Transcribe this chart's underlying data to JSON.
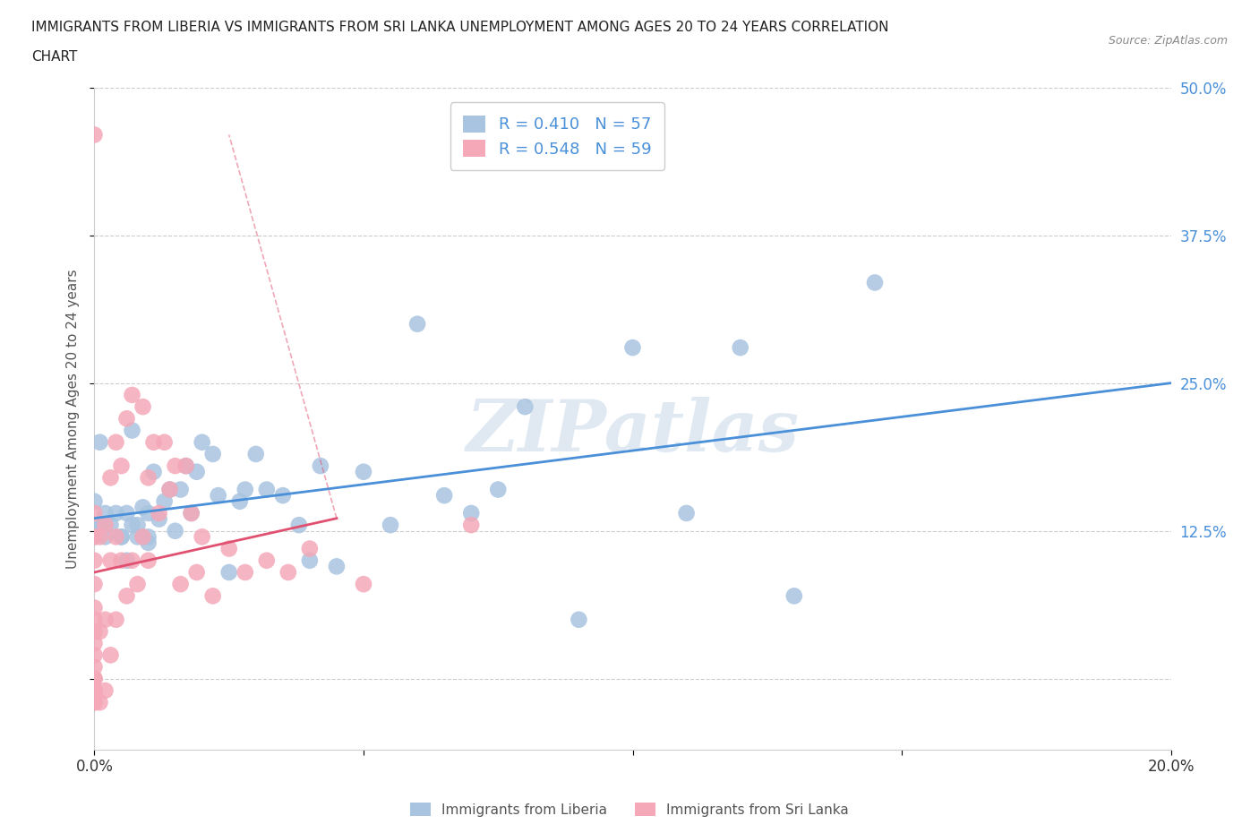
{
  "title_line1": "IMMIGRANTS FROM LIBERIA VS IMMIGRANTS FROM SRI LANKA UNEMPLOYMENT AMONG AGES 20 TO 24 YEARS CORRELATION",
  "title_line2": "CHART",
  "source": "Source: ZipAtlas.com",
  "ylabel": "Unemployment Among Ages 20 to 24 years",
  "xlim": [
    0.0,
    0.2
  ],
  "ylim": [
    -0.06,
    0.5
  ],
  "yticks": [
    0.0,
    0.125,
    0.25,
    0.375,
    0.5
  ],
  "ytick_labels": [
    "",
    "12.5%",
    "25.0%",
    "37.5%",
    "50.0%"
  ],
  "xticks": [
    0.0,
    0.05,
    0.1,
    0.15,
    0.2
  ],
  "xtick_labels": [
    "0.0%",
    "",
    "",
    "",
    "20.0%"
  ],
  "liberia_R": 0.41,
  "liberia_N": 57,
  "srilanka_R": 0.548,
  "srilanka_N": 59,
  "liberia_color": "#a8c4e0",
  "srilanka_color": "#f4a8b8",
  "liberia_line_color": "#4a90d9",
  "srilanka_line_color": "#e05070",
  "watermark": "ZIPatlas",
  "watermark_color": "#c8d8e8",
  "background_color": "#ffffff",
  "liberia_x": [
    0.0,
    0.0,
    0.0,
    0.001,
    0.001,
    0.002,
    0.002,
    0.003,
    0.004,
    0.005,
    0.005,
    0.006,
    0.006,
    0.007,
    0.007,
    0.008,
    0.008,
    0.009,
    0.009,
    0.01,
    0.01,
    0.01,
    0.011,
    0.012,
    0.013,
    0.014,
    0.015,
    0.016,
    0.017,
    0.018,
    0.019,
    0.02,
    0.022,
    0.023,
    0.025,
    0.027,
    0.028,
    0.03,
    0.032,
    0.035,
    0.038,
    0.04,
    0.042,
    0.045,
    0.05,
    0.055,
    0.06,
    0.065,
    0.07,
    0.075,
    0.08,
    0.09,
    0.1,
    0.11,
    0.12,
    0.13,
    0.145
  ],
  "liberia_y": [
    0.12,
    0.13,
    0.15,
    0.13,
    0.2,
    0.12,
    0.14,
    0.13,
    0.14,
    0.12,
    0.12,
    0.1,
    0.14,
    0.13,
    0.21,
    0.12,
    0.13,
    0.12,
    0.145,
    0.115,
    0.12,
    0.14,
    0.175,
    0.135,
    0.15,
    0.16,
    0.125,
    0.16,
    0.18,
    0.14,
    0.175,
    0.2,
    0.19,
    0.155,
    0.09,
    0.15,
    0.16,
    0.19,
    0.16,
    0.155,
    0.13,
    0.1,
    0.18,
    0.095,
    0.175,
    0.13,
    0.3,
    0.155,
    0.14,
    0.16,
    0.23,
    0.05,
    0.28,
    0.14,
    0.28,
    0.07,
    0.335
  ],
  "srilanka_x": [
    0.0,
    0.0,
    0.0,
    0.0,
    0.0,
    0.0,
    0.0,
    0.0,
    0.0,
    0.0,
    0.0,
    0.0,
    0.0,
    0.0,
    0.0,
    0.0,
    0.0,
    0.0,
    0.001,
    0.001,
    0.001,
    0.002,
    0.002,
    0.002,
    0.003,
    0.003,
    0.003,
    0.004,
    0.004,
    0.004,
    0.005,
    0.005,
    0.006,
    0.006,
    0.007,
    0.007,
    0.008,
    0.009,
    0.009,
    0.01,
    0.01,
    0.011,
    0.012,
    0.013,
    0.014,
    0.015,
    0.016,
    0.017,
    0.018,
    0.019,
    0.02,
    0.022,
    0.025,
    0.028,
    0.032,
    0.036,
    0.04,
    0.05,
    0.07
  ],
  "srilanka_y": [
    -0.01,
    -0.01,
    -0.02,
    -0.02,
    -0.01,
    0.0,
    0.0,
    0.01,
    0.02,
    0.03,
    0.04,
    0.05,
    0.06,
    0.08,
    0.1,
    0.12,
    0.14,
    0.46,
    -0.02,
    0.04,
    0.12,
    -0.01,
    0.05,
    0.13,
    0.02,
    0.1,
    0.17,
    0.05,
    0.12,
    0.2,
    0.1,
    0.18,
    0.07,
    0.22,
    0.1,
    0.24,
    0.08,
    0.12,
    0.23,
    0.1,
    0.17,
    0.2,
    0.14,
    0.2,
    0.16,
    0.18,
    0.08,
    0.18,
    0.14,
    0.09,
    0.12,
    0.07,
    0.11,
    0.09,
    0.1,
    0.09,
    0.11,
    0.08,
    0.13
  ],
  "srilanka_line_xlim": [
    0.0,
    0.045
  ],
  "liberia_line_xlim": [
    0.0,
    0.2
  ]
}
